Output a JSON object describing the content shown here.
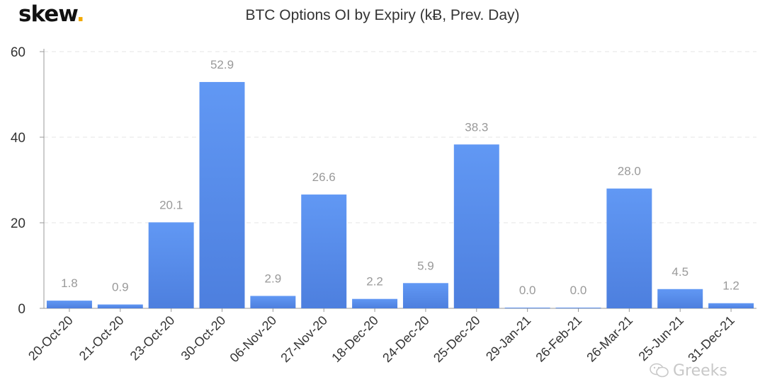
{
  "brand": {
    "name": "skew",
    "dot": "."
  },
  "chart_data": {
    "type": "bar",
    "title": "BTC Options OI by Expiry (kɃ, Prev. Day)",
    "categories": [
      "20-Oct-20",
      "21-Oct-20",
      "23-Oct-20",
      "30-Oct-20",
      "06-Nov-20",
      "27-Nov-20",
      "18-Dec-20",
      "24-Dec-20",
      "25-Dec-20",
      "29-Jan-21",
      "26-Feb-21",
      "26-Mar-21",
      "25-Jun-21",
      "31-Dec-21"
    ],
    "values": [
      1.8,
      0.9,
      20.1,
      52.9,
      2.9,
      26.6,
      2.2,
      5.9,
      38.3,
      0.0,
      0.0,
      28.0,
      4.5,
      1.2
    ],
    "value_labels": [
      "1.8",
      "0.9",
      "20.1",
      "52.9",
      "2.9",
      "26.6",
      "2.2",
      "5.9",
      "38.3",
      "0.0",
      "0.0",
      "28.0",
      "4.5",
      "1.2"
    ],
    "yticks": [
      "0",
      "20",
      "40",
      "60"
    ],
    "ylim": [
      0,
      60
    ],
    "grid": true,
    "bar_color": "#5b8def"
  },
  "watermark": {
    "text": "Greeks",
    "icon": "wechat-icon"
  }
}
